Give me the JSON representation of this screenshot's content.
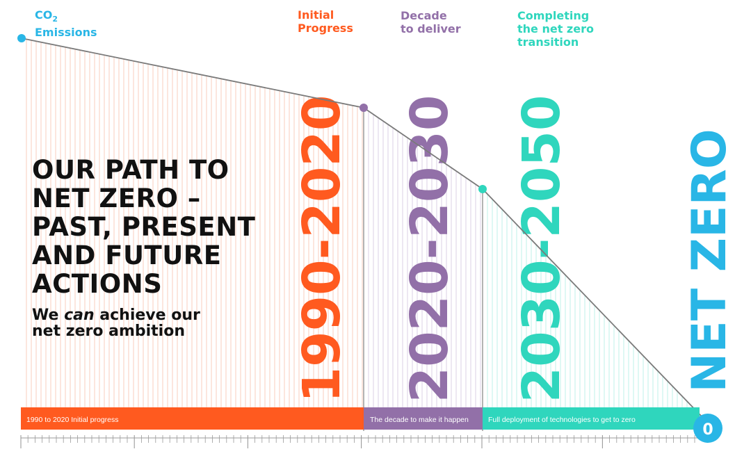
{
  "headers": {
    "co2_main": "CO",
    "co2_sub": "2",
    "co2_line2": "Emissions",
    "initial": "Initial\nProgress",
    "decade": "Decade\nto deliver",
    "completing": "Completing\nthe net zero\ntransition"
  },
  "title": "OUR PATH TO\nNET ZERO –\nPAST, PRESENT\nAND FUTURE\nACTIONS",
  "subtitle": {
    "part1": "We ",
    "italic": "can",
    "part2": " achieve our",
    "line2": "net zero ambition"
  },
  "periods": [
    {
      "id": "initial",
      "label": "1990-2020",
      "bar_text": "1990 to 2020 Initial progress",
      "color": "#ff5a1f"
    },
    {
      "id": "decade",
      "label": "2020-2030",
      "bar_text": "The decade to make it happen",
      "color": "#9270a8"
    },
    {
      "id": "complete",
      "label": "2030-2050",
      "bar_text": "Full deployment of technologies to get to zero",
      "color": "#2fd6bd"
    }
  ],
  "net_zero_label": "NET ZERO",
  "zero_badge": "0",
  "colors": {
    "co2": "#29b6e6",
    "initial": "#ff5a1f",
    "decade": "#9270a8",
    "complete": "#2fd6bd",
    "net_zero": "#29b6e6",
    "line": "#7a7a7a",
    "text": "#111111"
  }
}
